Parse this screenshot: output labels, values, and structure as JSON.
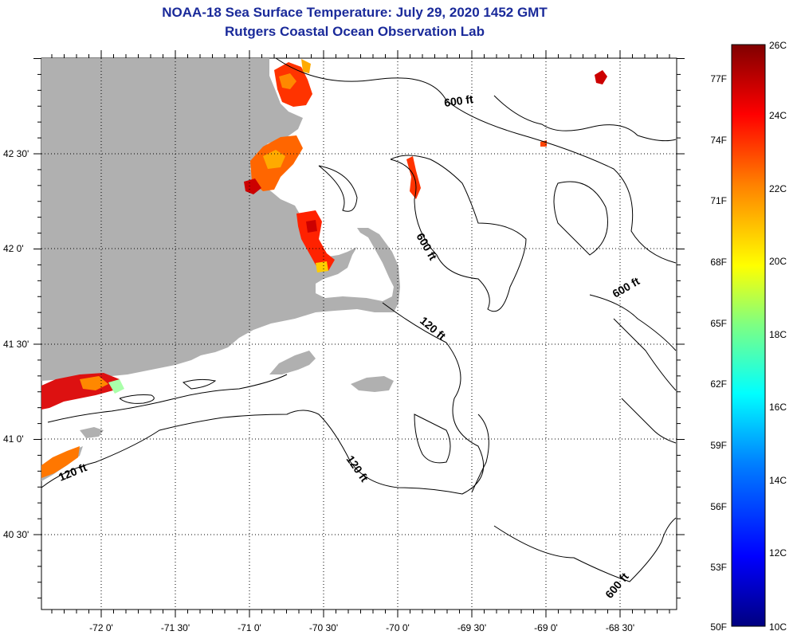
{
  "title": {
    "line1": "NOAA-18 Sea Surface Temperature:  July 29, 2020 1452 GMT",
    "line2": "Rutgers Coastal Ocean Observation Lab"
  },
  "axes": {
    "longitude_labels": [
      "-72 0'",
      "-71 30'",
      "-71 0'",
      "-70 30'",
      "-70 0'",
      "-69 30'",
      "-69 0'",
      "-68 30'"
    ],
    "latitude_labels": [
      "42 30'",
      "42 0'",
      "41 30'",
      "41 0'",
      "40 30'"
    ]
  },
  "contour_labels": [
    {
      "text": "600 ft"
    },
    {
      "text": "600 ft"
    },
    {
      "text": "600 ft"
    },
    {
      "text": "600 ft"
    },
    {
      "text": "120 ft"
    },
    {
      "text": "120 ft"
    },
    {
      "text": "120 ft"
    }
  ],
  "colorbar": {
    "fahrenheit_labels": [
      "77F",
      "74F",
      "71F",
      "68F",
      "65F",
      "62F",
      "59F",
      "56F",
      "53F",
      "50F"
    ],
    "celsius_labels": [
      "26C",
      "24C",
      "22C",
      "20C",
      "18C",
      "16C",
      "14C",
      "12C",
      "10C"
    ],
    "colors": [
      "#000080",
      "#0000ff",
      "#0080ff",
      "#00ffff",
      "#80ff80",
      "#ffff00",
      "#ff8000",
      "#ff0000",
      "#800000"
    ]
  },
  "land_color": "#b0b0b0"
}
